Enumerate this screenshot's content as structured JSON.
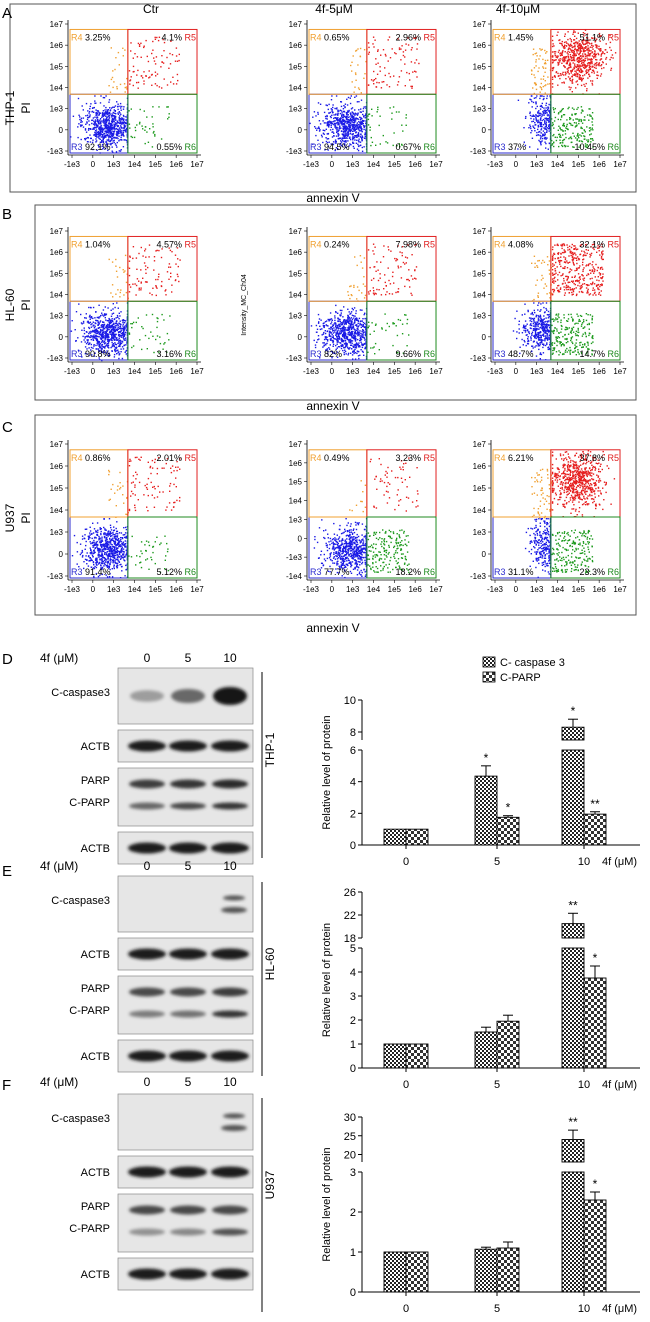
{
  "flow": {
    "panels": [
      {
        "letter": "A",
        "cell_line": "THP-1",
        "y_label": "PI",
        "x_label": "annexin V",
        "plots": [
          {
            "title": "Ctr",
            "y_axis_title": "",
            "cluster": "normal",
            "gates": {
              "R3": "92.1%",
              "R4": "3.25%",
              "R5": "4.1%",
              "R6": "0.55%"
            }
          },
          {
            "title": "4f-5μM",
            "y_axis_title": "",
            "cluster": "normal",
            "gates": {
              "R3": "94.5%",
              "R4": "0.65%",
              "R5": "2.96%",
              "R6": "0.67%"
            }
          },
          {
            "title": "4f-10μM",
            "y_axis_title": "",
            "cluster": "late",
            "gates": {
              "R3": "37%",
              "R4": "1.45%",
              "R5": "51.1%",
              "R6": "10.45%"
            }
          }
        ]
      },
      {
        "letter": "B",
        "cell_line": "HL-60",
        "y_label": "PI",
        "x_label": "annexin V",
        "plots": [
          {
            "title": "",
            "y_axis_title": "",
            "cluster": "normal",
            "gates": {
              "R3": "90.8%",
              "R4": "1.04%",
              "R5": "4.57%",
              "R6": "3.16%"
            }
          },
          {
            "title": "",
            "y_axis_title": "Intensity_MC_Ch04",
            "cluster": "normal",
            "gates": {
              "R3": "82%",
              "R4": "0.24%",
              "R5": "7.98%",
              "R6": "9.66%"
            }
          },
          {
            "title": "",
            "y_axis_title": "",
            "cluster": "mid",
            "gates": {
              "R3": "48.7%",
              "R4": "4.08%",
              "R5": "32.1%",
              "R6": "14.7%"
            }
          }
        ]
      },
      {
        "letter": "C",
        "cell_line": "U937",
        "y_label": "PI",
        "x_label": "annexin V",
        "plots": [
          {
            "title": "",
            "y_axis_title": "",
            "cluster": "normal",
            "gates": {
              "R3": "91.4%",
              "R4": "0.86%",
              "R5": "2.01%",
              "R6": "5.12%"
            }
          },
          {
            "title": "",
            "y_axis_title": "",
            "cluster": "early",
            "gates": {
              "R3": "77.7%",
              "R4": "0.49%",
              "R5": "3.23%",
              "R6": "18.2%"
            }
          },
          {
            "title": "",
            "y_axis_title": "",
            "cluster": "late",
            "gates": {
              "R3": "31.1%",
              "R4": "6.21%",
              "R5": "37.8%",
              "R6": "23.3%"
            }
          }
        ]
      }
    ],
    "y_ticks": [
      "1e7",
      "1e6",
      "1e5",
      "1e4",
      "1e3",
      "0",
      "-1e3"
    ],
    "y_ticks_alt": [
      "1e7",
      "1e6",
      "1e5",
      "1e4",
      "1e3",
      "0",
      "-1e3",
      "-1e4"
    ],
    "x_ticks": [
      "-1e3",
      "0",
      "1e3",
      "1e4",
      "1e5",
      "1e6",
      "1e7"
    ],
    "gate_colors": {
      "R3": "#2b2bcf",
      "R4": "#f0a030",
      "R5": "#e02020",
      "R6": "#1f8a1f"
    },
    "dot_colors": {
      "R3": "#1a1ae6",
      "R4": "#f0a030",
      "R5": "#e61e1e",
      "R6": "#1c9a1c"
    }
  },
  "western": {
    "dose_label": "4f (μM)",
    "doses": [
      "0",
      "5",
      "10"
    ],
    "panels": [
      {
        "letter": "D",
        "cell_line": "THP-1",
        "rows": [
          "C-caspase3",
          "ACTB",
          "PARP",
          "C-PARP",
          "ACTB"
        ]
      },
      {
        "letter": "E",
        "cell_line": "HL-60",
        "rows": [
          "C-caspase3",
          "ACTB",
          "PARP",
          "C-PARP",
          "ACTB"
        ]
      },
      {
        "letter": "F",
        "cell_line": "U937",
        "rows": [
          "C-caspase3",
          "ACTB",
          "PARP",
          "C-PARP",
          "ACTB"
        ]
      }
    ]
  },
  "legend": [
    "C- caspase 3",
    "C-PARP"
  ],
  "chart_data": [
    {
      "type": "bar",
      "panel": "D",
      "cell_line": "THP-1",
      "categories": [
        "0",
        "5",
        "10"
      ],
      "xlabel": "4f (μM)",
      "ylabel": "Relative level of protein",
      "series": [
        {
          "name": "C- caspase 3",
          "values": [
            1.0,
            4.35,
            8.3
          ],
          "errors": [
            0,
            0.65,
            0.5
          ]
        },
        {
          "name": "C-PARP",
          "values": [
            1.0,
            1.75,
            1.95
          ],
          "errors": [
            0,
            0.1,
            0.15
          ]
        }
      ],
      "significance": [
        [
          "",
          "*",
          "*"
        ],
        [
          "",
          "*",
          "**"
        ]
      ],
      "y_axis_lower": {
        "range": [
          0,
          6
        ],
        "ticks": [
          "0",
          "2",
          "4",
          "6"
        ]
      },
      "y_axis_upper": {
        "range": [
          7.5,
          10
        ],
        "ticks": [
          "8",
          "10"
        ]
      }
    },
    {
      "type": "bar",
      "panel": "E",
      "cell_line": "HL-60",
      "categories": [
        "0",
        "5",
        "10"
      ],
      "xlabel": "4f (μM)",
      "ylabel": "Relative level of protein",
      "series": [
        {
          "name": "C- caspase 3",
          "values": [
            1.0,
            1.5,
            20.5
          ],
          "errors": [
            0,
            0.2,
            1.8
          ]
        },
        {
          "name": "C-PARP",
          "values": [
            1.0,
            1.95,
            3.75
          ],
          "errors": [
            0,
            0.25,
            0.5
          ]
        }
      ],
      "significance": [
        [
          "",
          "",
          "**"
        ],
        [
          "",
          "",
          "*"
        ]
      ],
      "y_axis_lower": {
        "range": [
          0,
          5
        ],
        "ticks": [
          "0",
          "1",
          "2",
          "3",
          "4",
          "5"
        ]
      },
      "y_axis_upper": {
        "range": [
          18,
          26
        ],
        "ticks": [
          "18",
          "22",
          "26"
        ]
      }
    },
    {
      "type": "bar",
      "panel": "F",
      "cell_line": "U937",
      "categories": [
        "0",
        "5",
        "10"
      ],
      "xlabel": "4f (μM)",
      "ylabel": "Relative level of protein",
      "series": [
        {
          "name": "C- caspase 3",
          "values": [
            1.0,
            1.07,
            24.0
          ],
          "errors": [
            0,
            0.05,
            2.5
          ]
        },
        {
          "name": "C-PARP",
          "values": [
            1.0,
            1.1,
            2.3
          ],
          "errors": [
            0,
            0.15,
            0.2
          ]
        }
      ],
      "significance": [
        [
          "",
          "",
          "**"
        ],
        [
          "",
          "",
          "*"
        ]
      ],
      "y_axis_lower": {
        "range": [
          0,
          3
        ],
        "ticks": [
          "0",
          "1",
          "2",
          "3"
        ]
      },
      "y_axis_upper": {
        "range": [
          18,
          30
        ],
        "ticks": [
          "20",
          "25",
          "30"
        ]
      }
    }
  ]
}
